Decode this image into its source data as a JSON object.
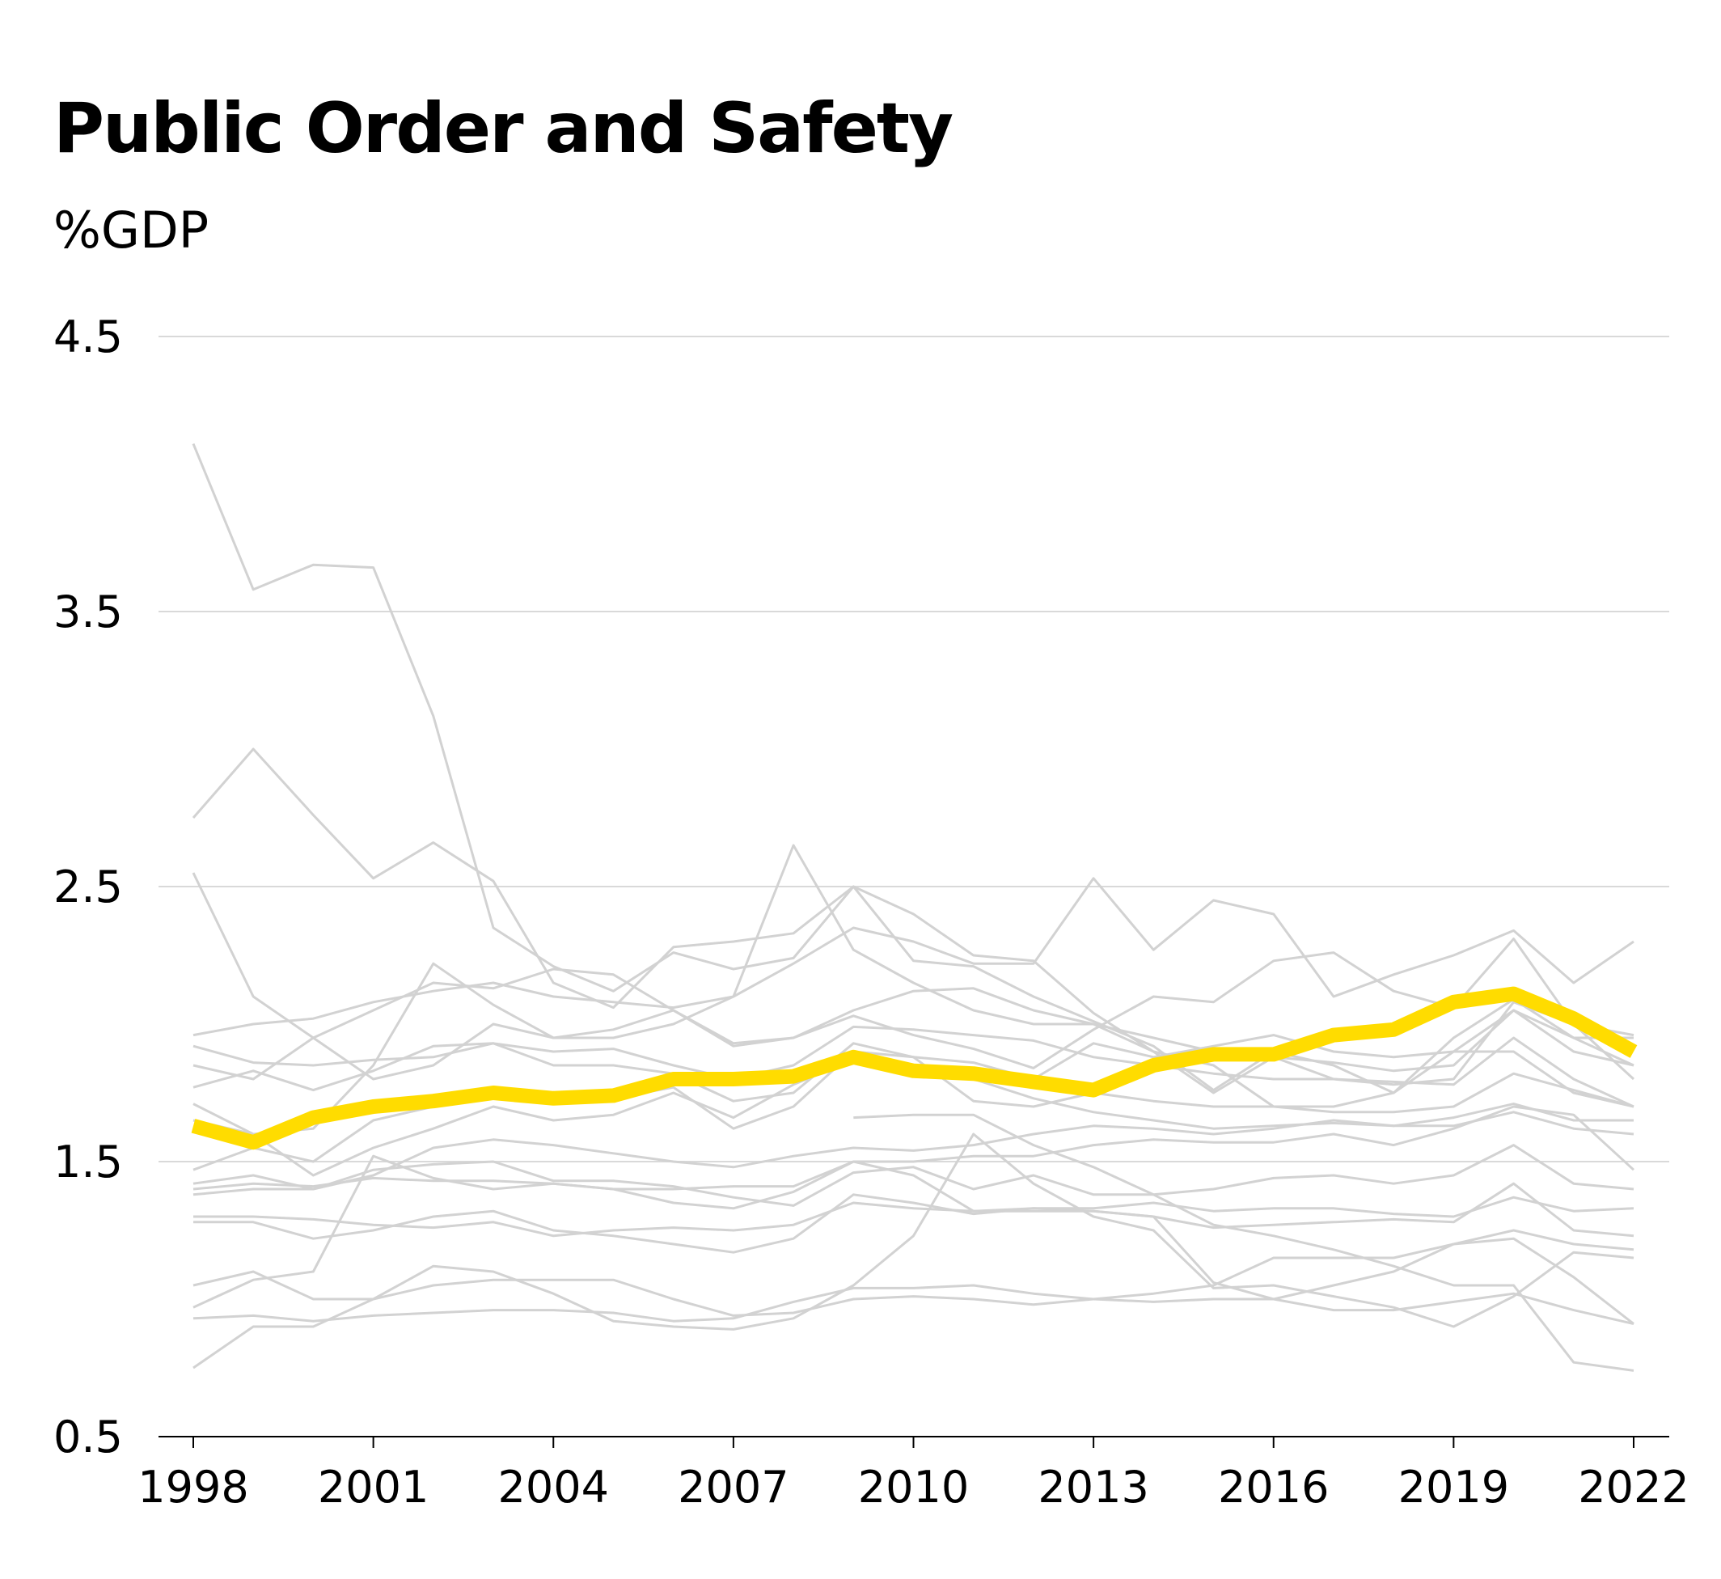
{
  "title": "Public Order and Safety",
  "subtitle": "%GDP",
  "chart_data": {
    "type": "line",
    "title": "Public Order and Safety",
    "ylabel": "%GDP",
    "xlim": [
      1998,
      2022
    ],
    "ylim": [
      0.5,
      4.5
    ],
    "yticks": [
      "0.5",
      "1.5",
      "2.5",
      "3.5",
      "4.5"
    ],
    "xticks": [
      "1998",
      "2001",
      "2004",
      "2007",
      "2010",
      "2013",
      "2016",
      "2019",
      "2022"
    ],
    "x": [
      1998,
      1999,
      2000,
      2001,
      2002,
      2003,
      2004,
      2005,
      2006,
      2007,
      2008,
      2009,
      2010,
      2011,
      2012,
      2013,
      2014,
      2015,
      2016,
      2017,
      2018,
      2019,
      2020,
      2021,
      2022
    ],
    "grid": true,
    "colors": {
      "highlight": "#ffdc00",
      "context": "#d2d2d2",
      "grid": "#d9d9d9",
      "axis": "#000000"
    },
    "highlight": {
      "values": [
        1.63,
        1.57,
        1.66,
        1.7,
        1.72,
        1.75,
        1.73,
        1.74,
        1.8,
        1.8,
        1.81,
        1.88,
        1.83,
        1.82,
        1.79,
        1.76,
        1.85,
        1.89,
        1.89,
        1.96,
        1.98,
        2.08,
        2.11,
        2.02,
        1.9
      ]
    },
    "series": [
      {
        "values": [
          4.11,
          3.58,
          3.67,
          3.66,
          3.12,
          2.35,
          2.21,
          2.12,
          2.26,
          2.2,
          2.24,
          2.5,
          2.4,
          2.25,
          2.23,
          2.04,
          1.9,
          1.75,
          1.88,
          1.8,
          1.78,
          1.8,
          2.08,
          2.0,
          1.8
        ]
      },
      {
        "values": [
          2.75,
          3.0,
          2.76,
          2.53,
          2.66,
          2.52,
          2.15,
          2.06,
          2.28,
          2.3,
          2.33,
          2.5,
          2.23,
          2.21,
          2.1,
          2.01,
          1.92,
          1.76,
          1.9,
          1.85,
          1.75,
          1.95,
          2.09,
          1.95,
          1.95
        ]
      },
      {
        "values": [
          2.55,
          2.1,
          1.95,
          1.8,
          1.85,
          2.0,
          1.95,
          1.95,
          2.0,
          2.1,
          2.65,
          2.27,
          2.15,
          2.05,
          2.0,
          2.0,
          1.9,
          1.85,
          1.7,
          1.7,
          1.75,
          1.9,
          1.9,
          1.75,
          1.7
        ]
      },
      {
        "values": [
          1.96,
          2.0,
          2.02,
          2.08,
          2.12,
          2.15,
          2.1,
          2.08,
          2.06,
          2.1,
          2.22,
          2.35,
          2.3,
          2.22,
          2.22,
          2.53,
          2.27,
          2.45,
          2.4,
          2.1,
          2.18,
          2.25,
          2.34,
          2.15,
          2.3
        ]
      },
      {
        "values": [
          1.71,
          1.6,
          1.62,
          1.85,
          2.22,
          2.07,
          1.95,
          1.98,
          2.05,
          1.92,
          1.95,
          2.03,
          1.96,
          1.91,
          1.84,
          1.98,
          2.1,
          2.08,
          2.23,
          2.26,
          2.12,
          2.06,
          2.31,
          2.0,
          1.96
        ]
      },
      {
        "values": [
          1.92,
          1.86,
          1.85,
          1.87,
          1.88,
          1.93,
          1.9,
          1.91,
          1.85,
          1.8,
          1.85,
          1.99,
          1.98,
          1.96,
          1.94,
          1.88,
          1.85,
          1.82,
          1.8,
          1.8,
          1.79,
          1.78,
          1.95,
          1.8,
          1.7
        ]
      },
      {
        "values": [
          1.85,
          1.8,
          1.95,
          2.05,
          2.15,
          2.13,
          2.2,
          2.18,
          2.05,
          1.93,
          1.95,
          2.05,
          2.12,
          2.13,
          2.05,
          2.0,
          1.95,
          1.9,
          1.88,
          1.86,
          1.83,
          1.85,
          2.05,
          1.9,
          1.85
        ]
      },
      {
        "values": [
          1.77,
          1.83,
          1.76,
          1.83,
          1.92,
          1.93,
          1.85,
          1.85,
          1.82,
          1.72,
          1.75,
          1.93,
          1.88,
          1.86,
          1.8,
          1.93,
          1.88,
          1.92,
          1.96,
          1.9,
          1.88,
          1.9,
          2.05,
          1.95,
          1.85
        ]
      },
      {
        "values": [
          1.47,
          1.55,
          1.5,
          1.65,
          1.7,
          1.76,
          1.71,
          1.73,
          1.77,
          1.62,
          1.7,
          1.9,
          1.88,
          1.72,
          1.7,
          1.75,
          1.72,
          1.7,
          1.7,
          1.68,
          1.68,
          1.7,
          1.82,
          1.76,
          1.7
        ]
      },
      {
        "values": [
          1.65,
          1.6,
          1.45,
          1.55,
          1.62,
          1.7,
          1.65,
          1.67,
          1.75,
          1.66,
          1.78,
          1.87,
          1.83,
          1.8,
          1.73,
          1.68,
          1.65,
          1.62,
          1.63,
          1.64,
          1.63,
          1.66,
          1.71,
          1.65,
          1.65
        ]
      },
      {
        "values": [
          1.42,
          1.45,
          1.4,
          1.45,
          1.55,
          1.58,
          1.56,
          1.53,
          1.5,
          1.48,
          1.52,
          1.55,
          1.54,
          1.56,
          1.6,
          1.63,
          1.62,
          1.6,
          1.62,
          1.65,
          1.63,
          1.63,
          1.68,
          1.62,
          1.6
        ]
      },
      {
        "values": [
          1.4,
          1.42,
          1.41,
          1.44,
          1.43,
          1.43,
          1.42,
          1.4,
          1.4,
          1.41,
          1.41,
          1.5,
          1.5,
          1.52,
          1.52,
          1.56,
          1.58,
          1.57,
          1.57,
          1.6,
          1.56,
          1.62,
          1.7,
          1.67,
          1.47
        ]
      },
      {
        "values": [
          1.38,
          1.4,
          1.4,
          1.47,
          1.49,
          1.5,
          1.43,
          1.43,
          1.41,
          1.37,
          1.34,
          1.46,
          1.48,
          1.4,
          1.45,
          1.38,
          1.38,
          1.4,
          1.44,
          1.45,
          1.42,
          1.45,
          1.56,
          1.42,
          1.4
        ]
      },
      {
        "values": [
          1.3,
          1.3,
          1.29,
          1.27,
          1.26,
          1.28,
          1.23,
          1.25,
          1.26,
          1.25,
          1.27,
          1.35,
          1.33,
          1.32,
          1.32,
          1.32,
          1.3,
          1.26,
          1.27,
          1.28,
          1.29,
          1.28,
          1.42,
          1.25,
          1.23
        ]
      },
      {
        "values": [
          1.28,
          1.28,
          1.22,
          1.25,
          1.3,
          1.32,
          1.25,
          1.23,
          1.2,
          1.17,
          1.22,
          1.38,
          1.35,
          1.31,
          1.33,
          1.33,
          1.35,
          1.32,
          1.33,
          1.33,
          1.31,
          1.3,
          1.37,
          1.32,
          1.33
        ]
      },
      {
        "values": [
          1.05,
          1.1,
          1.0,
          1.0,
          1.12,
          1.1,
          1.02,
          0.92,
          0.9,
          0.89,
          0.93,
          1.05,
          1.23,
          1.6,
          1.42,
          1.3,
          1.25,
          1.04,
          1.05,
          1.01,
          0.97,
          0.9,
          1.01,
          1.17,
          1.15
        ]
      },
      {
        "values": [
          0.97,
          1.07,
          1.1,
          1.52,
          1.44,
          1.4,
          1.42,
          1.4,
          1.35,
          1.33,
          1.39,
          1.5,
          1.45,
          1.32,
          1.33,
          1.32,
          1.3,
          1.06,
          1.0,
          1.05,
          1.1,
          1.2,
          1.25,
          1.2,
          1.18
        ]
      },
      {
        "values": [
          0.93,
          0.94,
          0.92,
          0.94,
          0.95,
          0.96,
          0.96,
          0.95,
          0.92,
          0.93,
          0.99,
          1.04,
          1.04,
          1.05,
          1.02,
          1.0,
          0.99,
          1.0,
          1.0,
          0.96,
          0.96,
          0.99,
          1.02,
          0.96,
          0.91
        ]
      },
      {
        "values": [
          0.75,
          0.9,
          0.9,
          1.0,
          1.05,
          1.07,
          1.07,
          1.07,
          1.0,
          0.94,
          0.95,
          1.0,
          1.01,
          1.0,
          0.98,
          1.0,
          1.02,
          1.05,
          1.15,
          1.15,
          1.15,
          1.2,
          1.22,
          1.08,
          0.91
        ]
      },
      {
        "values": [
          null,
          null,
          null,
          null,
          null,
          null,
          null,
          null,
          null,
          null,
          null,
          1.66,
          1.67,
          1.67,
          1.56,
          1.48,
          1.38,
          1.27,
          1.23,
          1.18,
          1.12,
          1.05,
          1.05,
          0.77,
          0.74
        ]
      }
    ]
  }
}
